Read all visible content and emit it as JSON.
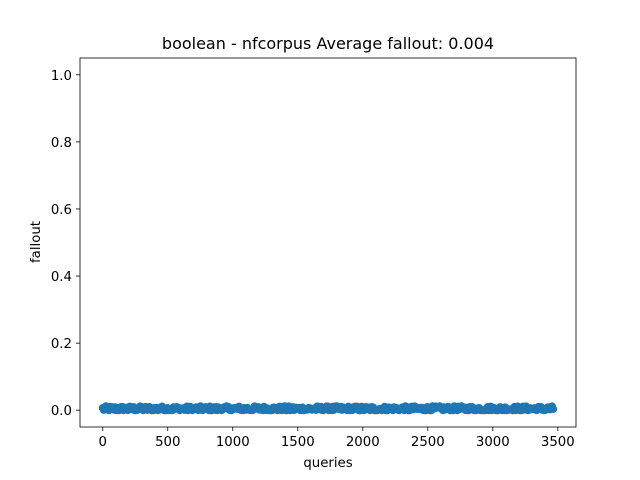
{
  "chart_data": {
    "type": "scatter",
    "title": "boolean - nfcorpus  Average fallout: 0.004",
    "xlabel": "queries",
    "ylabel": "fallout",
    "xlim": [
      -175,
      3640
    ],
    "ylim": [
      -0.05,
      1.05
    ],
    "xticks": [
      0,
      500,
      1000,
      1500,
      2000,
      2500,
      3000,
      3500
    ],
    "xtick_labels": [
      "0",
      "500",
      "1000",
      "1500",
      "2000",
      "2500",
      "3000",
      "3500"
    ],
    "yticks": [
      0.0,
      0.2,
      0.4,
      0.6,
      0.8,
      1.0
    ],
    "ytick_labels": [
      "0.0",
      "0.2",
      "0.4",
      "0.6",
      "0.8",
      "1.0"
    ],
    "grid": false,
    "legend": "none",
    "color": "#1f77b4",
    "series": [
      {
        "x_range": [
          0,
          3465
        ],
        "n_points": 3466,
        "y_mean": 0.004,
        "y_range": [
          0.0,
          0.012
        ]
      }
    ]
  }
}
